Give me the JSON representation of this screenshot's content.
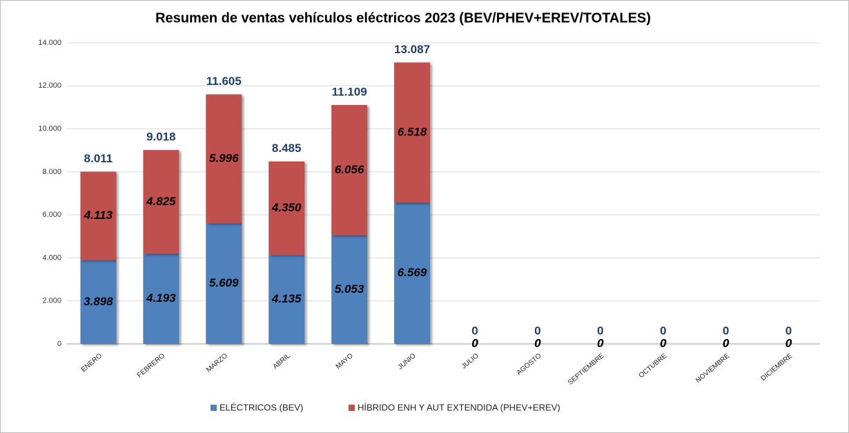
{
  "chart_data": {
    "type": "bar",
    "title": "Resumen de ventas vehículos eléctricos 2023 (BEV/PHEV+EREV/TOTALES)",
    "categories": [
      "ENERO",
      "FEBRERO",
      "MARZO",
      "ABRIL",
      "MAYO",
      "JUNIO",
      "JULIO",
      "AGOSTO",
      "SEPTIEMBRE",
      "OCTUBRE",
      "NOVIEMBRE",
      "DICIEMBRE"
    ],
    "series": [
      {
        "name": "ELÉCTRICOS (BEV)",
        "color": "#4f81bd",
        "values": [
          3898,
          4193,
          5609,
          4135,
          5053,
          6569,
          0,
          0,
          0,
          0,
          0,
          0
        ],
        "value_labels": [
          "3.898",
          "4.193",
          "5.609",
          "4.135",
          "5.053",
          "6.569",
          "0",
          "0",
          "0",
          "0",
          "0",
          "0"
        ]
      },
      {
        "name": "HÍBRIDO ENH Y AUT EXTENDIDA (PHEV+EREV)",
        "color": "#c0504d",
        "values": [
          4113,
          4825,
          5996,
          4350,
          6056,
          6518,
          0,
          0,
          0,
          0,
          0,
          0
        ],
        "value_labels": [
          "4.113",
          "4.825",
          "5.996",
          "4.350",
          "6.056",
          "6.518",
          "0",
          "0",
          "0",
          "0",
          "0",
          "0"
        ]
      }
    ],
    "totals": {
      "values": [
        8011,
        9018,
        11605,
        8485,
        11109,
        13087,
        0,
        0,
        0,
        0,
        0,
        0
      ],
      "value_labels": [
        "8.011",
        "9.018",
        "11.605",
        "8.485",
        "11.109",
        "13.087",
        "0",
        "0",
        "0",
        "0",
        "0",
        "0"
      ]
    },
    "stacked": true,
    "ylim": [
      0,
      14000
    ],
    "yticks": [
      0,
      {
        "value": 2000,
        "label": "2.000"
      },
      {
        "value": 4000,
        "label": "4.000"
      },
      {
        "value": 6000,
        "label": "6.000"
      },
      {
        "value": 8000,
        "label": "8.000"
      },
      {
        "value": 10000,
        "label": "10.000"
      },
      {
        "value": 12000,
        "label": "12.000"
      },
      {
        "value": 14000,
        "label": "14.000"
      }
    ],
    "grid": true,
    "legend": "bottom"
  }
}
